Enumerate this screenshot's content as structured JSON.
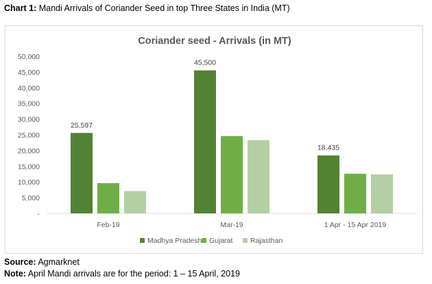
{
  "caption": {
    "label": "Chart 1:",
    "text": "Mandi Arrivals of Coriander Seed in top Three States in India (MT)"
  },
  "source": {
    "label": "Source:",
    "text": "Agmarknet"
  },
  "note": {
    "label": "Note:",
    "text": "April Mandi arrivals are for the period: 1 – 15 April, 2019"
  },
  "chart_data": {
    "type": "bar",
    "title": "Coriander seed - Arrivals (in MT)",
    "xlabel": "",
    "ylabel": "",
    "categories": [
      "Feb-19",
      "Mar-19",
      "1 Apr - 15 Apr 2019"
    ],
    "series": [
      {
        "name": "Madhya Pradesh",
        "color": "#548235",
        "values": [
          25597,
          45500,
          18435
        ]
      },
      {
        "name": "Gujarat",
        "color": "#70ad47",
        "values": [
          9600,
          24600,
          12600
        ]
      },
      {
        "name": "Rajasthan",
        "color": "#b5cfa5",
        "values": [
          7100,
          23300,
          12400
        ]
      }
    ],
    "data_labels": [
      {
        "series": 0,
        "category": 0,
        "text": "25,597"
      },
      {
        "series": 0,
        "category": 1,
        "text": "45,500"
      },
      {
        "series": 0,
        "category": 2,
        "text": "18,435"
      }
    ],
    "ylim": [
      0,
      50000
    ],
    "yticks": [
      {
        "value": 0,
        "label": "-"
      },
      {
        "value": 5000,
        "label": "5,000"
      },
      {
        "value": 10000,
        "label": "10,000"
      },
      {
        "value": 15000,
        "label": "15,000"
      },
      {
        "value": 20000,
        "label": "20,000"
      },
      {
        "value": 25000,
        "label": "25,000"
      },
      {
        "value": 30000,
        "label": "30,000"
      },
      {
        "value": 35000,
        "label": "35,000"
      },
      {
        "value": 40000,
        "label": "40,000"
      },
      {
        "value": 45000,
        "label": "45,000"
      },
      {
        "value": 50000,
        "label": "50,000"
      }
    ],
    "grid": false,
    "legend": "bottom-center"
  }
}
